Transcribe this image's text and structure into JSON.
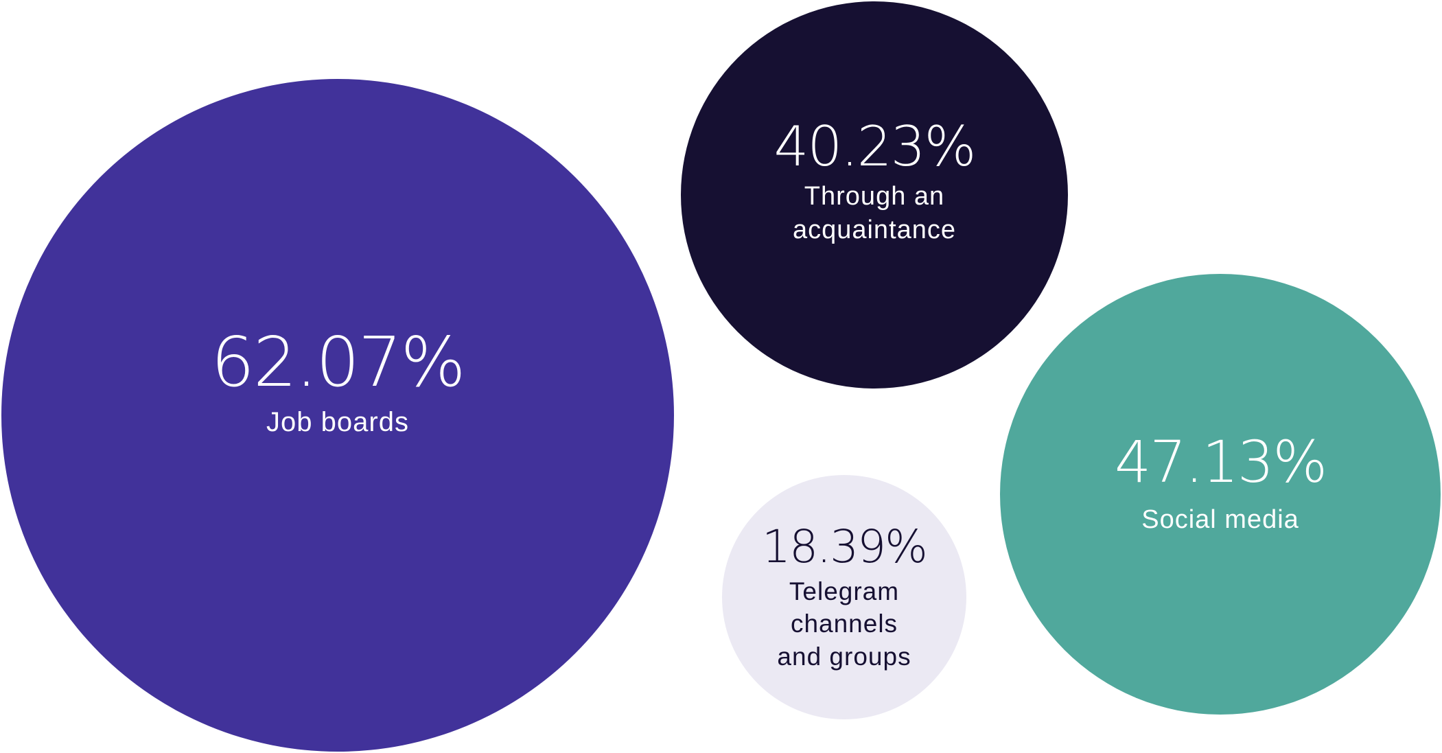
{
  "chart_data": {
    "type": "bubble",
    "title": "",
    "unit": "%",
    "items": [
      {
        "value": 62.07,
        "value_label": "62.07%",
        "label_lines": [
          "Job boards"
        ],
        "color": "#41329a",
        "text_color": "#ffffff"
      },
      {
        "value": 40.23,
        "value_label": "40.23%",
        "label_lines": [
          "Through an",
          "acquaintance"
        ],
        "color": "#161032",
        "text_color": "#ffffff"
      },
      {
        "value": 47.13,
        "value_label": "47.13%",
        "label_lines": [
          "Social media"
        ],
        "color": "#50a89c",
        "text_color": "#ffffff"
      },
      {
        "value": 18.39,
        "value_label": "18.39%",
        "label_lines": [
          "Telegram",
          "channels",
          "and groups"
        ],
        "color": "#ebe9f3",
        "text_color": "#161032"
      }
    ]
  }
}
